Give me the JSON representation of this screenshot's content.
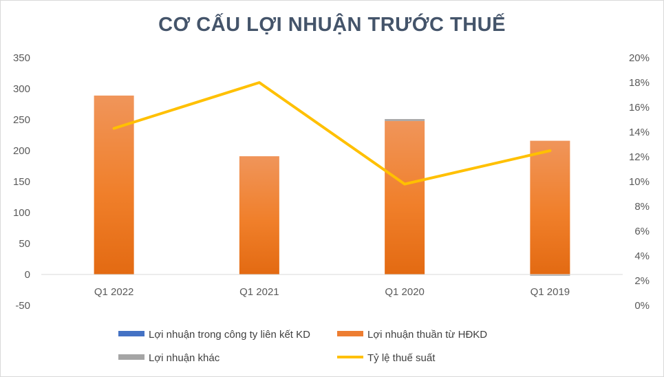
{
  "chart_data": {
    "type": "bar",
    "title": "CƠ CẤU LỢI NHUẬN TRƯỚC THUẾ",
    "categories": [
      "Q1 2022",
      "Q1 2021",
      "Q1 2020",
      "Q1 2019"
    ],
    "stacked": true,
    "series": [
      {
        "name": "Lợi nhuận trong công ty liên kết KD",
        "type": "bar",
        "axis": "left",
        "color": "#4472c4",
        "values": [
          0,
          0,
          0,
          0
        ]
      },
      {
        "name": "Lợi nhuận thuần từ HĐKD",
        "type": "bar",
        "axis": "left",
        "color": "#ed7d31",
        "values": [
          289,
          191,
          248,
          216
        ]
      },
      {
        "name": "Lợi nhuận khác",
        "type": "bar",
        "axis": "left",
        "color": "#a5a5a5",
        "values": [
          0,
          0,
          3,
          -2
        ]
      },
      {
        "name": "Tỷ lệ thuế suất",
        "type": "line",
        "axis": "right",
        "color": "#ffc000",
        "values": [
          0.143,
          0.18,
          0.098,
          0.125
        ]
      }
    ],
    "y_left": {
      "min": -50,
      "max": 350,
      "step": 50,
      "ticks": [
        "-50",
        "0",
        "50",
        "100",
        "150",
        "200",
        "250",
        "300",
        "350"
      ]
    },
    "y_right": {
      "min": 0,
      "max": 0.2,
      "step": 0.02,
      "ticks": [
        "0%",
        "2%",
        "4%",
        "6%",
        "8%",
        "10%",
        "12%",
        "14%",
        "16%",
        "18%",
        "20%"
      ]
    },
    "legend_position": "bottom",
    "grid": false
  }
}
